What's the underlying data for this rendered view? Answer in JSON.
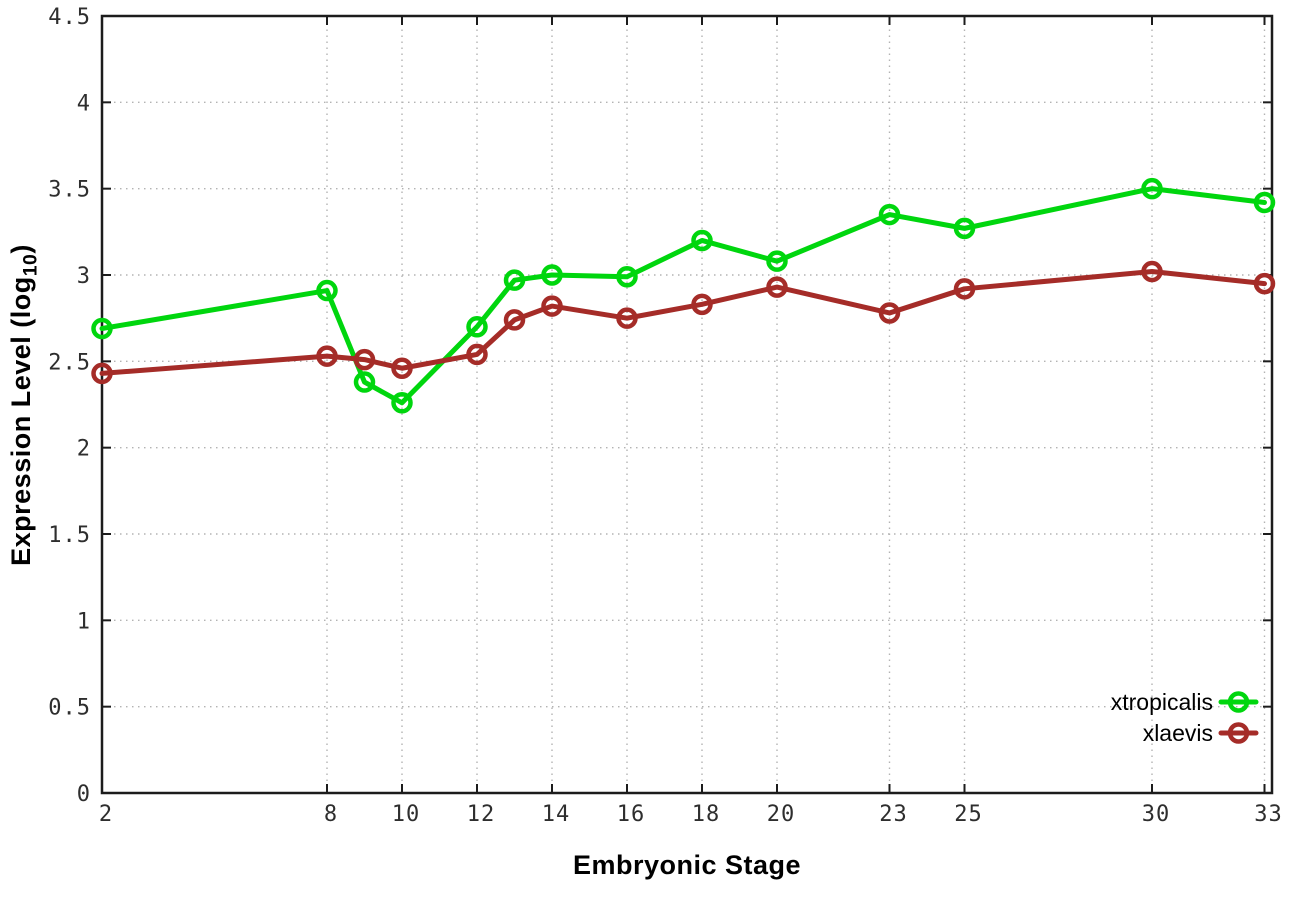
{
  "chart_data": {
    "type": "line",
    "title": "",
    "xlabel": "Embryonic Stage",
    "ylabel_pre": "Expression Level (log",
    "ylabel_sub": "10",
    "ylabel_post": ")",
    "xlim": [
      2,
      33.2
    ],
    "ylim": [
      0,
      4.5
    ],
    "grid": true,
    "grid_style": "dotted",
    "legend_position": "inside-bottom-right",
    "x": [
      2,
      8,
      9,
      10,
      12,
      13,
      14,
      16,
      18,
      20,
      23,
      25,
      30,
      33
    ],
    "x_tick_values": [
      2,
      8,
      10,
      12,
      14,
      16,
      18,
      20,
      23,
      25,
      30,
      33
    ],
    "x_tick_labels": [
      "2",
      "8",
      "10",
      "12",
      "14",
      "16",
      "18",
      "20",
      "23",
      "25",
      "30",
      "33"
    ],
    "y_tick_values": [
      0,
      0.5,
      1,
      1.5,
      2,
      2.5,
      3,
      3.5,
      4,
      4.5
    ],
    "y_tick_labels": [
      "0",
      "0.5",
      "1",
      "1.5",
      "2",
      "2.5",
      "3",
      "3.5",
      "4",
      "4.5"
    ],
    "series": [
      {
        "name": "xtropicalis",
        "color": "#00d60e",
        "marker": "open-circle",
        "values": [
          2.69,
          2.91,
          2.38,
          2.26,
          2.7,
          2.97,
          3.0,
          2.99,
          3.2,
          3.08,
          3.35,
          3.27,
          3.5,
          3.42
        ]
      },
      {
        "name": "xlaevis",
        "color": "#a52c28",
        "marker": "open-circle",
        "values": [
          2.43,
          2.53,
          2.51,
          2.46,
          2.54,
          2.74,
          2.82,
          2.75,
          2.83,
          2.93,
          2.78,
          2.92,
          3.02,
          2.95
        ]
      }
    ],
    "colors": {
      "border": "#1c1c1c",
      "grid": "#b3b3b3",
      "tick_text": "#2e2e2e",
      "background": "#ffffff"
    }
  }
}
